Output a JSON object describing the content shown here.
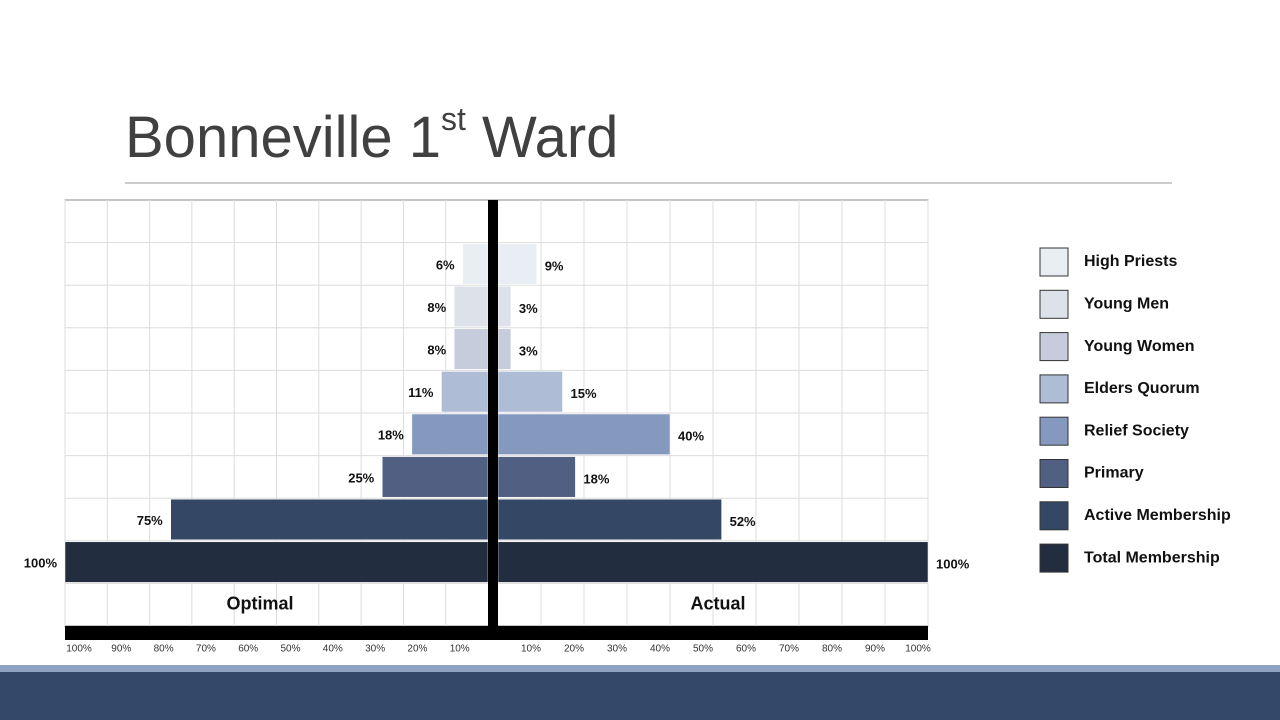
{
  "chart_data": {
    "type": "butterfly",
    "title": [
      "Bonneville 1",
      "st",
      " Ward"
    ],
    "categories": [
      "High Priests",
      "Young Men",
      "Young Women",
      "Elders Quorum",
      "Relief Society",
      "Primary",
      "Active Membership",
      "Total Membership"
    ],
    "colors": [
      "#e9edf4",
      "#dde2ea",
      "#c6ccdb",
      "#aebcd6",
      "#8499bd",
      "#515f82",
      "#344866",
      "#222d40"
    ],
    "series": [
      {
        "name": "Optimal",
        "values": [
          6,
          8,
          8,
          11,
          18,
          25,
          75,
          100
        ],
        "value_labels": [
          "6%",
          "8%",
          "8%",
          "11%",
          "18%",
          "25%",
          "75%",
          "100%"
        ]
      },
      {
        "name": "Actual",
        "values": [
          9,
          3,
          3,
          15,
          40,
          18,
          52,
          100
        ],
        "value_labels": [
          "9%",
          "3%",
          "3%",
          "15%",
          "40%",
          "18%",
          "52%",
          "100%"
        ]
      }
    ],
    "xlim": [
      0,
      100
    ],
    "xticks": [
      {
        "value": 10,
        "label": "10%"
      },
      {
        "value": 20,
        "label": "20%"
      },
      {
        "value": 30,
        "label": "30%"
      },
      {
        "value": 40,
        "label": "40%"
      },
      {
        "value": 50,
        "label": "50%"
      },
      {
        "value": 60,
        "label": "60%"
      },
      {
        "value": 70,
        "label": "70%"
      },
      {
        "value": 80,
        "label": "80%"
      },
      {
        "value": 90,
        "label": "90%"
      },
      {
        "value": 100,
        "label": "100%"
      }
    ],
    "grid": true
  }
}
